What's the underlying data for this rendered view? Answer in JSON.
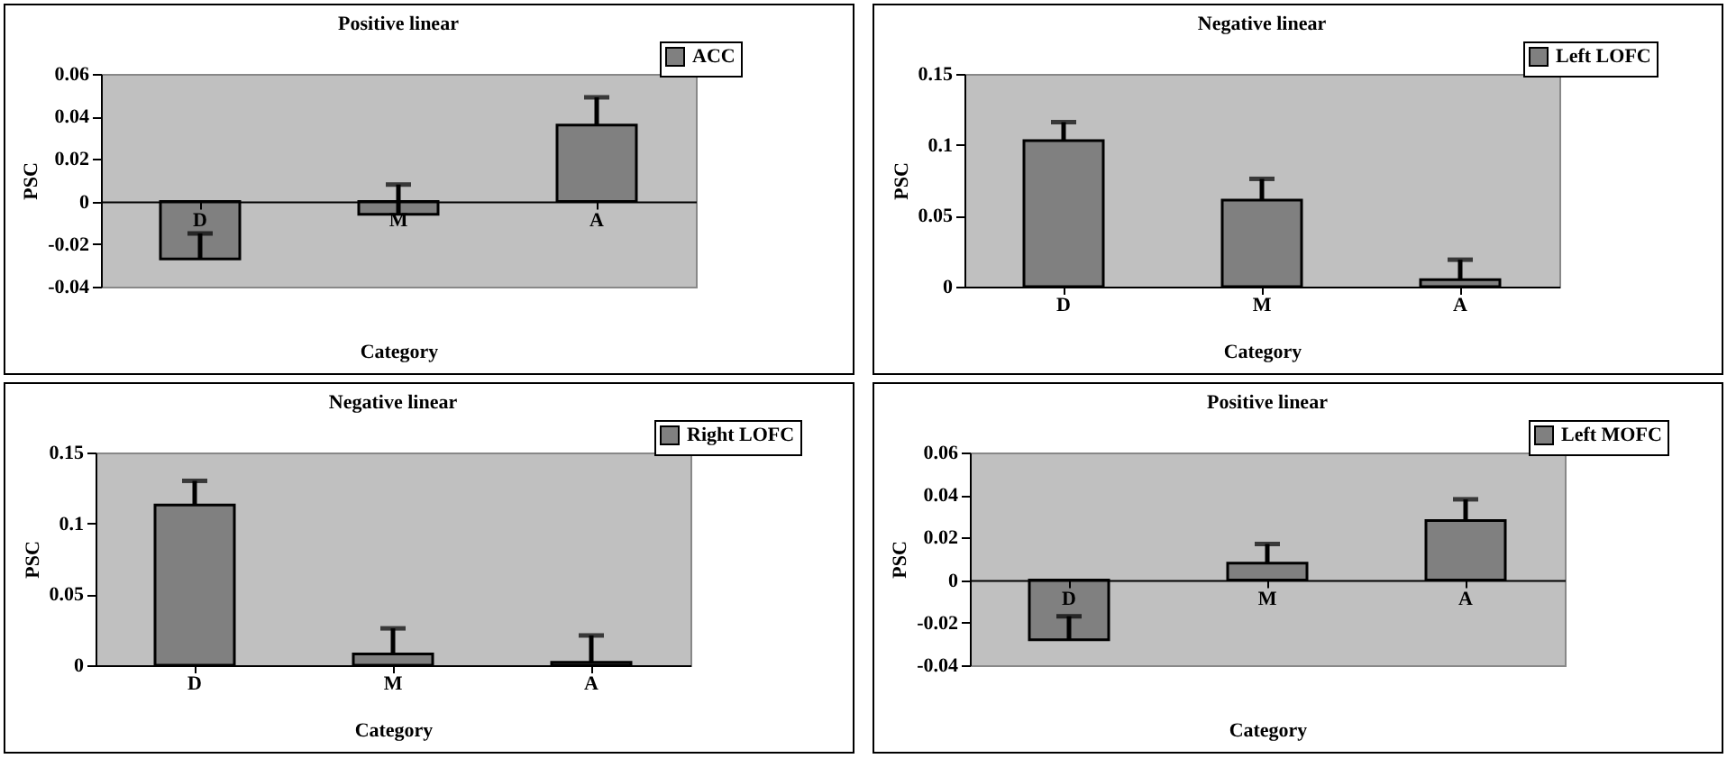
{
  "chart_data": [
    {
      "type": "bar",
      "title": "Positive linear",
      "xlabel": "Category",
      "ylabel": "PSC",
      "categories": [
        "D",
        "M",
        "A"
      ],
      "series": [
        {
          "name": "ACC",
          "color": "#808080",
          "values": [
            -0.027,
            -0.006,
            0.036
          ],
          "errors": [
            [
              -0.027,
              -0.015
            ],
            [
              -0.006,
              0.008
            ],
            [
              0.036,
              0.049
            ]
          ]
        }
      ],
      "ylim": [
        -0.04,
        0.06
      ],
      "yticks": [
        -0.04,
        -0.02,
        0,
        0.02,
        0.04,
        0.06
      ],
      "legend": "top right"
    },
    {
      "type": "bar",
      "title": "Negative linear",
      "xlabel": "Category",
      "ylabel": "PSC",
      "categories": [
        "D",
        "M",
        "A"
      ],
      "series": [
        {
          "name": "Left LOFC",
          "color": "#808080",
          "values": [
            0.103,
            0.061,
            0.005
          ],
          "errors": [
            [
              0.103,
              0.116
            ],
            [
              0.061,
              0.076
            ],
            [
              0.005,
              0.019
            ]
          ]
        }
      ],
      "ylim": [
        0,
        0.15
      ],
      "yticks": [
        0,
        0.05,
        0.1,
        0.15
      ],
      "legend": "top right"
    },
    {
      "type": "bar",
      "title": "Negative linear",
      "xlabel": "Category",
      "ylabel": "PSC",
      "categories": [
        "D",
        "M",
        "A"
      ],
      "series": [
        {
          "name": "Right LOFC",
          "color": "#808080",
          "values": [
            0.113,
            0.008,
            0.002
          ],
          "errors": [
            [
              0.113,
              0.13
            ],
            [
              0.008,
              0.026
            ],
            [
              0.002,
              0.021
            ]
          ]
        }
      ],
      "ylim": [
        0,
        0.15
      ],
      "yticks": [
        0,
        0.05,
        0.1,
        0.15
      ],
      "legend": "top right"
    },
    {
      "type": "bar",
      "title": "Positive linear",
      "xlabel": "Category",
      "ylabel": "PSC",
      "categories": [
        "D",
        "M",
        "A"
      ],
      "series": [
        {
          "name": "Left MOFC",
          "color": "#808080",
          "values": [
            -0.028,
            0.008,
            0.028
          ],
          "errors": [
            [
              -0.028,
              -0.017
            ],
            [
              0.008,
              0.017
            ],
            [
              0.028,
              0.038
            ]
          ]
        }
      ],
      "ylim": [
        -0.04,
        0.06
      ],
      "yticks": [
        -0.04,
        -0.02,
        0,
        0.02,
        0.04,
        0.06
      ],
      "legend": "top right"
    }
  ]
}
